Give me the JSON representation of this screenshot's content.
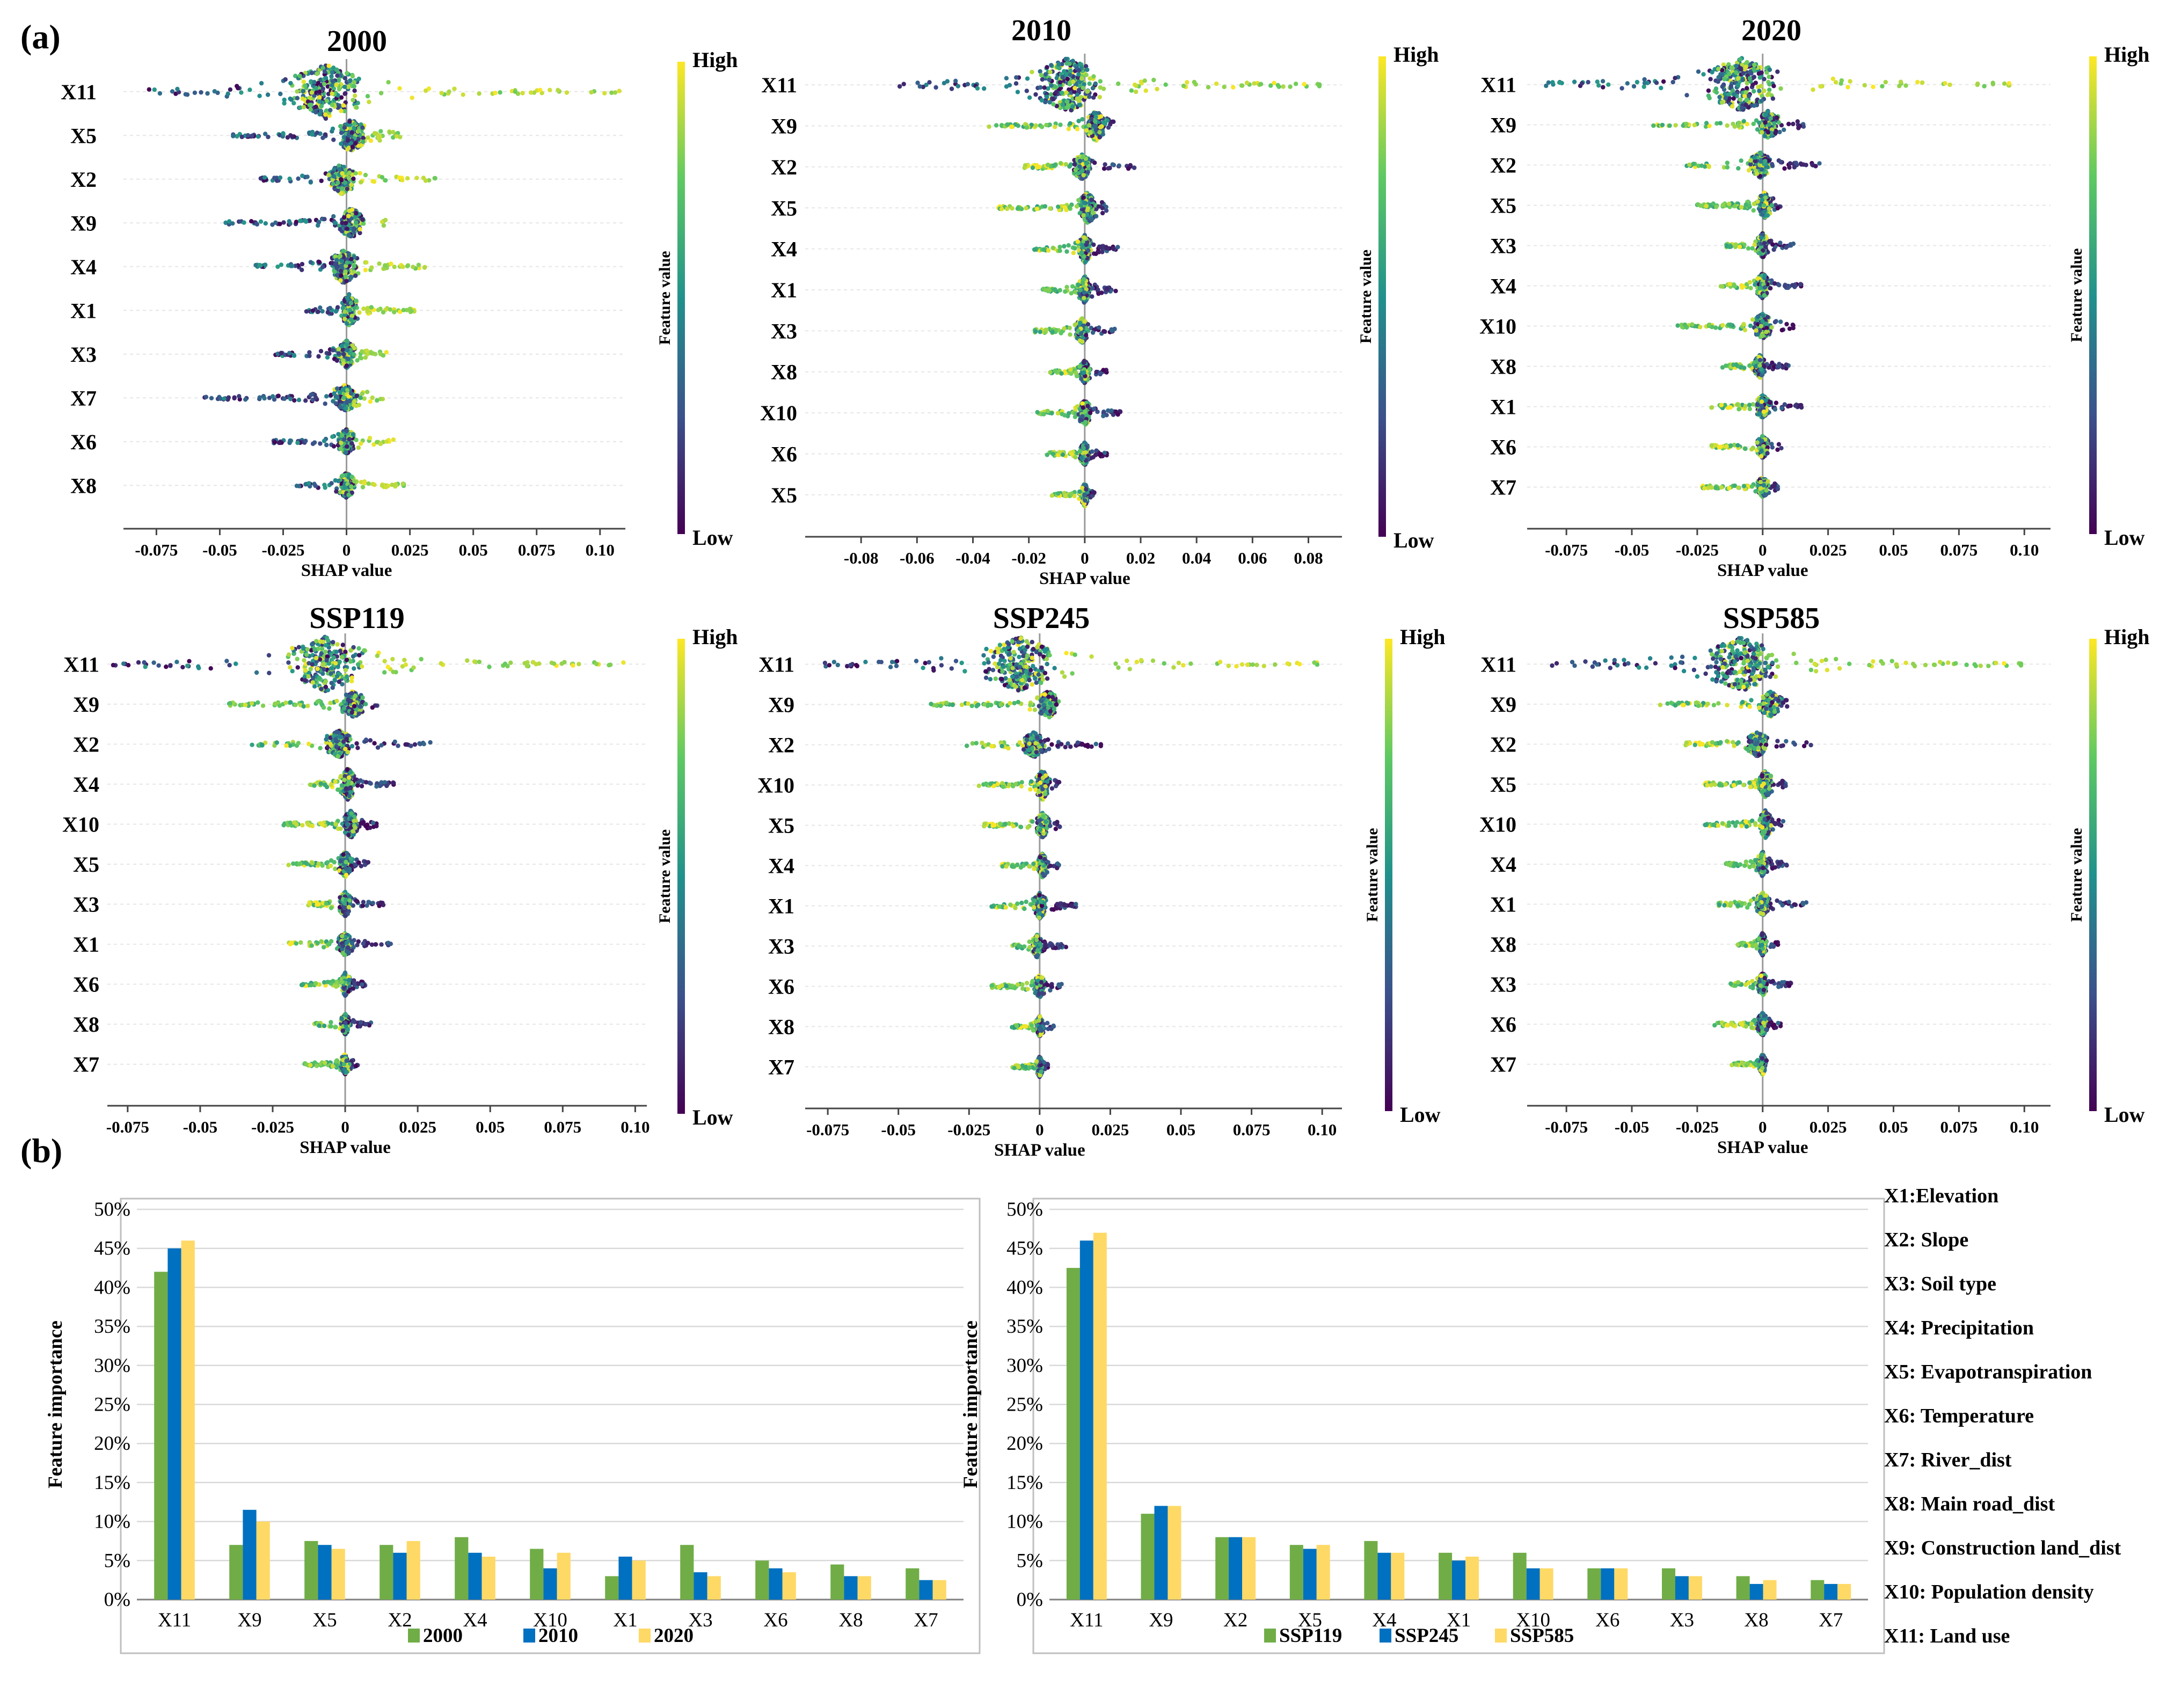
{
  "figure": {
    "panel_a_label": "(a)",
    "panel_b_label": "(b)",
    "variable_key": [
      "X1:Elevation",
      "X2: Slope",
      "X3: Soil type",
      "X4: Precipitation",
      "X5: Evapotranspiration",
      "X6: Temperature",
      "X7: River_dist",
      "X8: Main road_dist",
      "X9: Construction land_dist",
      "X10: Population density",
      "X11: Land use"
    ],
    "colors": {
      "low": "#440154",
      "mid": "#21918c",
      "high": "#fde725",
      "green": "#70ad47",
      "blue": "#0070c0",
      "yellow": "#ffd966"
    }
  },
  "chart_data": [
    {
      "type": "scatter",
      "title": "2000",
      "xlabel": "SHAP value",
      "colorbar_title": "Feature value",
      "colorbar_high": "High",
      "colorbar_low": "Low",
      "xlim": [
        -0.088,
        0.11
      ],
      "xticks": [
        -0.075,
        -0.05,
        -0.025,
        0,
        0.025,
        0.05,
        0.075,
        0.1
      ],
      "xtick_labels": [
        "-0.075",
        "-0.05",
        "-0.025",
        "0",
        "0.025",
        "0.05",
        "0.075",
        "0.10"
      ],
      "features": [
        {
          "name": "X11",
          "min": -0.078,
          "max": 0.108,
          "center": -0.008,
          "width": 1.0
        },
        {
          "name": "X5",
          "min": -0.045,
          "max": 0.023,
          "center": 0.002,
          "width": 0.55
        },
        {
          "name": "X2",
          "min": -0.036,
          "max": 0.035,
          "center": -0.002,
          "width": 0.45
        },
        {
          "name": "X9",
          "min": -0.048,
          "max": 0.017,
          "center": 0.002,
          "width": 0.45
        },
        {
          "name": "X4",
          "min": -0.037,
          "max": 0.033,
          "center": -0.001,
          "width": 0.55
        },
        {
          "name": "X1",
          "min": -0.016,
          "max": 0.027,
          "center": 0.001,
          "width": 0.5
        },
        {
          "name": "X3",
          "min": -0.028,
          "max": 0.016,
          "center": 0.0,
          "width": 0.4
        },
        {
          "name": "X7",
          "min": -0.056,
          "max": 0.017,
          "center": 0.0,
          "width": 0.4
        },
        {
          "name": "X6",
          "min": -0.029,
          "max": 0.019,
          "center": 0.0,
          "width": 0.35
        },
        {
          "name": "X8",
          "min": -0.021,
          "max": 0.023,
          "center": 0.0,
          "width": 0.35
        }
      ]
    },
    {
      "type": "scatter",
      "title": "2010",
      "xlabel": "SHAP value",
      "colorbar_title": "Feature value",
      "colorbar_high": "High",
      "colorbar_low": "Low",
      "xlim": [
        -0.1,
        0.092
      ],
      "xticks": [
        -0.08,
        -0.06,
        -0.04,
        -0.02,
        0,
        0.02,
        0.04,
        0.06,
        0.08
      ],
      "xtick_labels": [
        "-0.08",
        "-0.06",
        "-0.04",
        "-0.02",
        "0",
        "0.02",
        "0.04",
        "0.06",
        "0.08"
      ],
      "features": [
        {
          "name": "X11",
          "min": -0.07,
          "max": 0.085,
          "center": -0.006,
          "width": 1.0
        },
        {
          "name": "X9",
          "min": -0.035,
          "max": 0.012,
          "center": 0.004,
          "width": 0.45
        },
        {
          "name": "X2",
          "min": -0.022,
          "max": 0.019,
          "center": -0.001,
          "width": 0.35
        },
        {
          "name": "X5",
          "min": -0.032,
          "max": 0.008,
          "center": 0.001,
          "width": 0.5
        },
        {
          "name": "X4",
          "min": -0.018,
          "max": 0.012,
          "center": 0.0,
          "width": 0.4
        },
        {
          "name": "X1",
          "min": -0.015,
          "max": 0.012,
          "center": 0.0,
          "width": 0.4
        },
        {
          "name": "X3",
          "min": -0.018,
          "max": 0.011,
          "center": -0.001,
          "width": 0.35
        },
        {
          "name": "X8",
          "min": -0.013,
          "max": 0.008,
          "center": 0.0,
          "width": 0.3
        },
        {
          "name": "X10",
          "min": -0.018,
          "max": 0.013,
          "center": 0.0,
          "width": 0.35
        },
        {
          "name": "X6",
          "min": -0.014,
          "max": 0.008,
          "center": 0.0,
          "width": 0.3
        },
        {
          "name": "X5",
          "min": -0.012,
          "max": 0.004,
          "center": 0.0,
          "width": 0.3
        }
      ]
    },
    {
      "type": "scatter",
      "title": "2020",
      "xlabel": "SHAP value",
      "colorbar_title": "Feature value",
      "colorbar_high": "High",
      "colorbar_low": "Low",
      "xlim": [
        -0.09,
        0.11
      ],
      "xticks": [
        -0.075,
        -0.05,
        -0.025,
        0,
        0.025,
        0.05,
        0.075,
        0.1
      ],
      "xtick_labels": [
        "-0.075",
        "-0.05",
        "-0.025",
        "0",
        "0.025",
        "0.05",
        "0.075",
        "0.10"
      ],
      "features": [
        {
          "name": "X11",
          "min": -0.085,
          "max": 0.1,
          "center": -0.008,
          "width": 1.0
        },
        {
          "name": "X9",
          "min": -0.042,
          "max": 0.016,
          "center": 0.002,
          "width": 0.4
        },
        {
          "name": "X2",
          "min": -0.029,
          "max": 0.022,
          "center": -0.001,
          "width": 0.35
        },
        {
          "name": "X5",
          "min": -0.025,
          "max": 0.008,
          "center": 0.001,
          "width": 0.4
        },
        {
          "name": "X3",
          "min": -0.014,
          "max": 0.012,
          "center": 0.0,
          "width": 0.35
        },
        {
          "name": "X4",
          "min": -0.017,
          "max": 0.015,
          "center": 0.0,
          "width": 0.35
        },
        {
          "name": "X10",
          "min": -0.034,
          "max": 0.012,
          "center": 0.0,
          "width": 0.35
        },
        {
          "name": "X8",
          "min": -0.016,
          "max": 0.011,
          "center": -0.001,
          "width": 0.3
        },
        {
          "name": "X1",
          "min": -0.02,
          "max": 0.016,
          "center": 0.0,
          "width": 0.3
        },
        {
          "name": "X6",
          "min": -0.02,
          "max": 0.008,
          "center": 0.0,
          "width": 0.3
        },
        {
          "name": "X7",
          "min": -0.024,
          "max": 0.006,
          "center": 0.0,
          "width": 0.25
        }
      ]
    },
    {
      "type": "scatter",
      "title": "SSP119",
      "xlabel": "SHAP value",
      "colorbar_title": "Feature value",
      "colorbar_high": "High",
      "colorbar_low": "Low",
      "xlim": [
        -0.082,
        0.104
      ],
      "xticks": [
        -0.075,
        -0.05,
        -0.025,
        0,
        0.025,
        0.05,
        0.075,
        0.1
      ],
      "xtick_labels": [
        "-0.075",
        "-0.05",
        "-0.025",
        "0",
        "0.025",
        "0.05",
        "0.075",
        "0.10"
      ],
      "features": [
        {
          "name": "X11",
          "min": -0.08,
          "max": 0.097,
          "center": -0.007,
          "width": 1.0
        },
        {
          "name": "X9",
          "min": -0.04,
          "max": 0.013,
          "center": 0.003,
          "width": 0.4
        },
        {
          "name": "X2",
          "min": -0.033,
          "max": 0.03,
          "center": -0.002,
          "width": 0.4
        },
        {
          "name": "X4",
          "min": -0.013,
          "max": 0.017,
          "center": 0.001,
          "width": 0.5
        },
        {
          "name": "X10",
          "min": -0.022,
          "max": 0.011,
          "center": 0.002,
          "width": 0.4
        },
        {
          "name": "X5",
          "min": -0.02,
          "max": 0.009,
          "center": 0.0,
          "width": 0.35
        },
        {
          "name": "X3",
          "min": -0.013,
          "max": 0.014,
          "center": 0.0,
          "width": 0.35
        },
        {
          "name": "X1",
          "min": -0.02,
          "max": 0.016,
          "center": 0.0,
          "width": 0.3
        },
        {
          "name": "X6",
          "min": -0.015,
          "max": 0.007,
          "center": 0.0,
          "width": 0.3
        },
        {
          "name": "X8",
          "min": -0.011,
          "max": 0.009,
          "center": 0.0,
          "width": 0.25
        },
        {
          "name": "X7",
          "min": -0.014,
          "max": 0.005,
          "center": 0.0,
          "width": 0.25
        }
      ]
    },
    {
      "type": "scatter",
      "title": "SSP245",
      "xlabel": "SHAP value",
      "colorbar_title": "Feature value",
      "colorbar_high": "High",
      "colorbar_low": "Low",
      "xlim": [
        -0.083,
        0.107
      ],
      "xticks": [
        -0.075,
        -0.05,
        -0.025,
        0,
        0.025,
        0.05,
        0.075,
        0.1
      ],
      "xtick_labels": [
        "-0.075",
        "-0.05",
        "-0.025",
        "0",
        "0.025",
        "0.05",
        "0.075",
        "0.10"
      ],
      "features": [
        {
          "name": "X11",
          "min": -0.077,
          "max": 0.1,
          "center": -0.007,
          "width": 1.0
        },
        {
          "name": "X9",
          "min": -0.04,
          "max": 0.006,
          "center": 0.003,
          "width": 0.4
        },
        {
          "name": "X2",
          "min": -0.027,
          "max": 0.022,
          "center": -0.002,
          "width": 0.35
        },
        {
          "name": "X10",
          "min": -0.022,
          "max": 0.008,
          "center": 0.001,
          "width": 0.45
        },
        {
          "name": "X5",
          "min": -0.02,
          "max": 0.008,
          "center": 0.001,
          "width": 0.35
        },
        {
          "name": "X4",
          "min": -0.014,
          "max": 0.007,
          "center": 0.001,
          "width": 0.35
        },
        {
          "name": "X1",
          "min": -0.017,
          "max": 0.013,
          "center": 0.0,
          "width": 0.35
        },
        {
          "name": "X3",
          "min": -0.01,
          "max": 0.01,
          "center": -0.001,
          "width": 0.3
        },
        {
          "name": "X6",
          "min": -0.017,
          "max": 0.008,
          "center": 0.0,
          "width": 0.3
        },
        {
          "name": "X8",
          "min": -0.01,
          "max": 0.006,
          "center": 0.0,
          "width": 0.25
        },
        {
          "name": "X7",
          "min": -0.01,
          "max": 0.003,
          "center": 0.0,
          "width": 0.25
        }
      ]
    },
    {
      "type": "scatter",
      "title": "SSP585",
      "xlabel": "SHAP value",
      "colorbar_title": "Feature value",
      "colorbar_high": "High",
      "colorbar_low": "Low",
      "xlim": [
        -0.09,
        0.11
      ],
      "xticks": [
        -0.075,
        -0.05,
        -0.025,
        0,
        0.025,
        0.05,
        0.075,
        0.1
      ],
      "xtick_labels": [
        "-0.075",
        "-0.05",
        "-0.025",
        "0",
        "0.025",
        "0.05",
        "0.075",
        "0.10"
      ],
      "features": [
        {
          "name": "X11",
          "min": -0.085,
          "max": 0.1,
          "center": -0.008,
          "width": 1.0
        },
        {
          "name": "X9",
          "min": -0.04,
          "max": 0.011,
          "center": 0.003,
          "width": 0.35
        },
        {
          "name": "X2",
          "min": -0.03,
          "max": 0.02,
          "center": -0.002,
          "width": 0.35
        },
        {
          "name": "X5",
          "min": -0.023,
          "max": 0.009,
          "center": 0.001,
          "width": 0.4
        },
        {
          "name": "X10",
          "min": -0.022,
          "max": 0.008,
          "center": 0.001,
          "width": 0.4
        },
        {
          "name": "X4",
          "min": -0.014,
          "max": 0.01,
          "center": 0.0,
          "width": 0.35
        },
        {
          "name": "X1",
          "min": -0.017,
          "max": 0.017,
          "center": 0.0,
          "width": 0.3
        },
        {
          "name": "X8",
          "min": -0.01,
          "max": 0.006,
          "center": 0.0,
          "width": 0.3
        },
        {
          "name": "X3",
          "min": -0.013,
          "max": 0.011,
          "center": 0.0,
          "width": 0.3
        },
        {
          "name": "X6",
          "min": -0.019,
          "max": 0.007,
          "center": 0.0,
          "width": 0.3
        },
        {
          "name": "X7",
          "min": -0.012,
          "max": 0.002,
          "center": 0.0,
          "width": 0.25
        }
      ]
    },
    {
      "type": "bar",
      "ylabel": "Feature importance",
      "ylim": [
        0,
        50
      ],
      "yticks": [
        "0%",
        "5%",
        "10%",
        "15%",
        "20%",
        "25%",
        "30%",
        "35%",
        "40%",
        "45%",
        "50%"
      ],
      "categories": [
        "X11",
        "X9",
        "X5",
        "X2",
        "X4",
        "X10",
        "X1",
        "X3",
        "X6",
        "X8",
        "X7"
      ],
      "series": [
        {
          "name": "2000",
          "color": "#70ad47",
          "values": [
            42,
            7,
            7.5,
            7,
            8,
            6.5,
            3,
            7,
            5,
            4.5,
            4
          ]
        },
        {
          "name": "2010",
          "color": "#0070c0",
          "values": [
            45,
            11.5,
            7,
            6,
            6,
            4,
            5.5,
            3.5,
            4,
            3,
            2.5
          ]
        },
        {
          "name": "2020",
          "color": "#ffd966",
          "values": [
            46,
            10,
            6.5,
            7.5,
            5.5,
            6,
            5,
            3,
            3.5,
            3,
            2.5
          ]
        }
      ]
    },
    {
      "type": "bar",
      "ylabel": "Feature importance",
      "ylim": [
        0,
        50
      ],
      "yticks": [
        "0%",
        "5%",
        "10%",
        "15%",
        "20%",
        "25%",
        "30%",
        "35%",
        "40%",
        "45%",
        "50%"
      ],
      "categories": [
        "X11",
        "X9",
        "X2",
        "X5",
        "X4",
        "X1",
        "X10",
        "X6",
        "X3",
        "X8",
        "X7"
      ],
      "series": [
        {
          "name": "SSP119",
          "color": "#70ad47",
          "values": [
            42.5,
            11,
            8,
            7,
            7.5,
            6,
            6,
            4,
            4,
            3,
            2.5
          ]
        },
        {
          "name": "SSP245",
          "color": "#0070c0",
          "values": [
            46,
            12,
            8,
            6.5,
            6,
            5,
            4,
            4,
            3,
            2,
            2
          ]
        },
        {
          "name": "SSP585",
          "color": "#ffd966",
          "values": [
            47,
            12,
            8,
            7,
            6,
            5.5,
            4,
            4,
            3,
            2.5,
            2
          ]
        }
      ]
    }
  ]
}
